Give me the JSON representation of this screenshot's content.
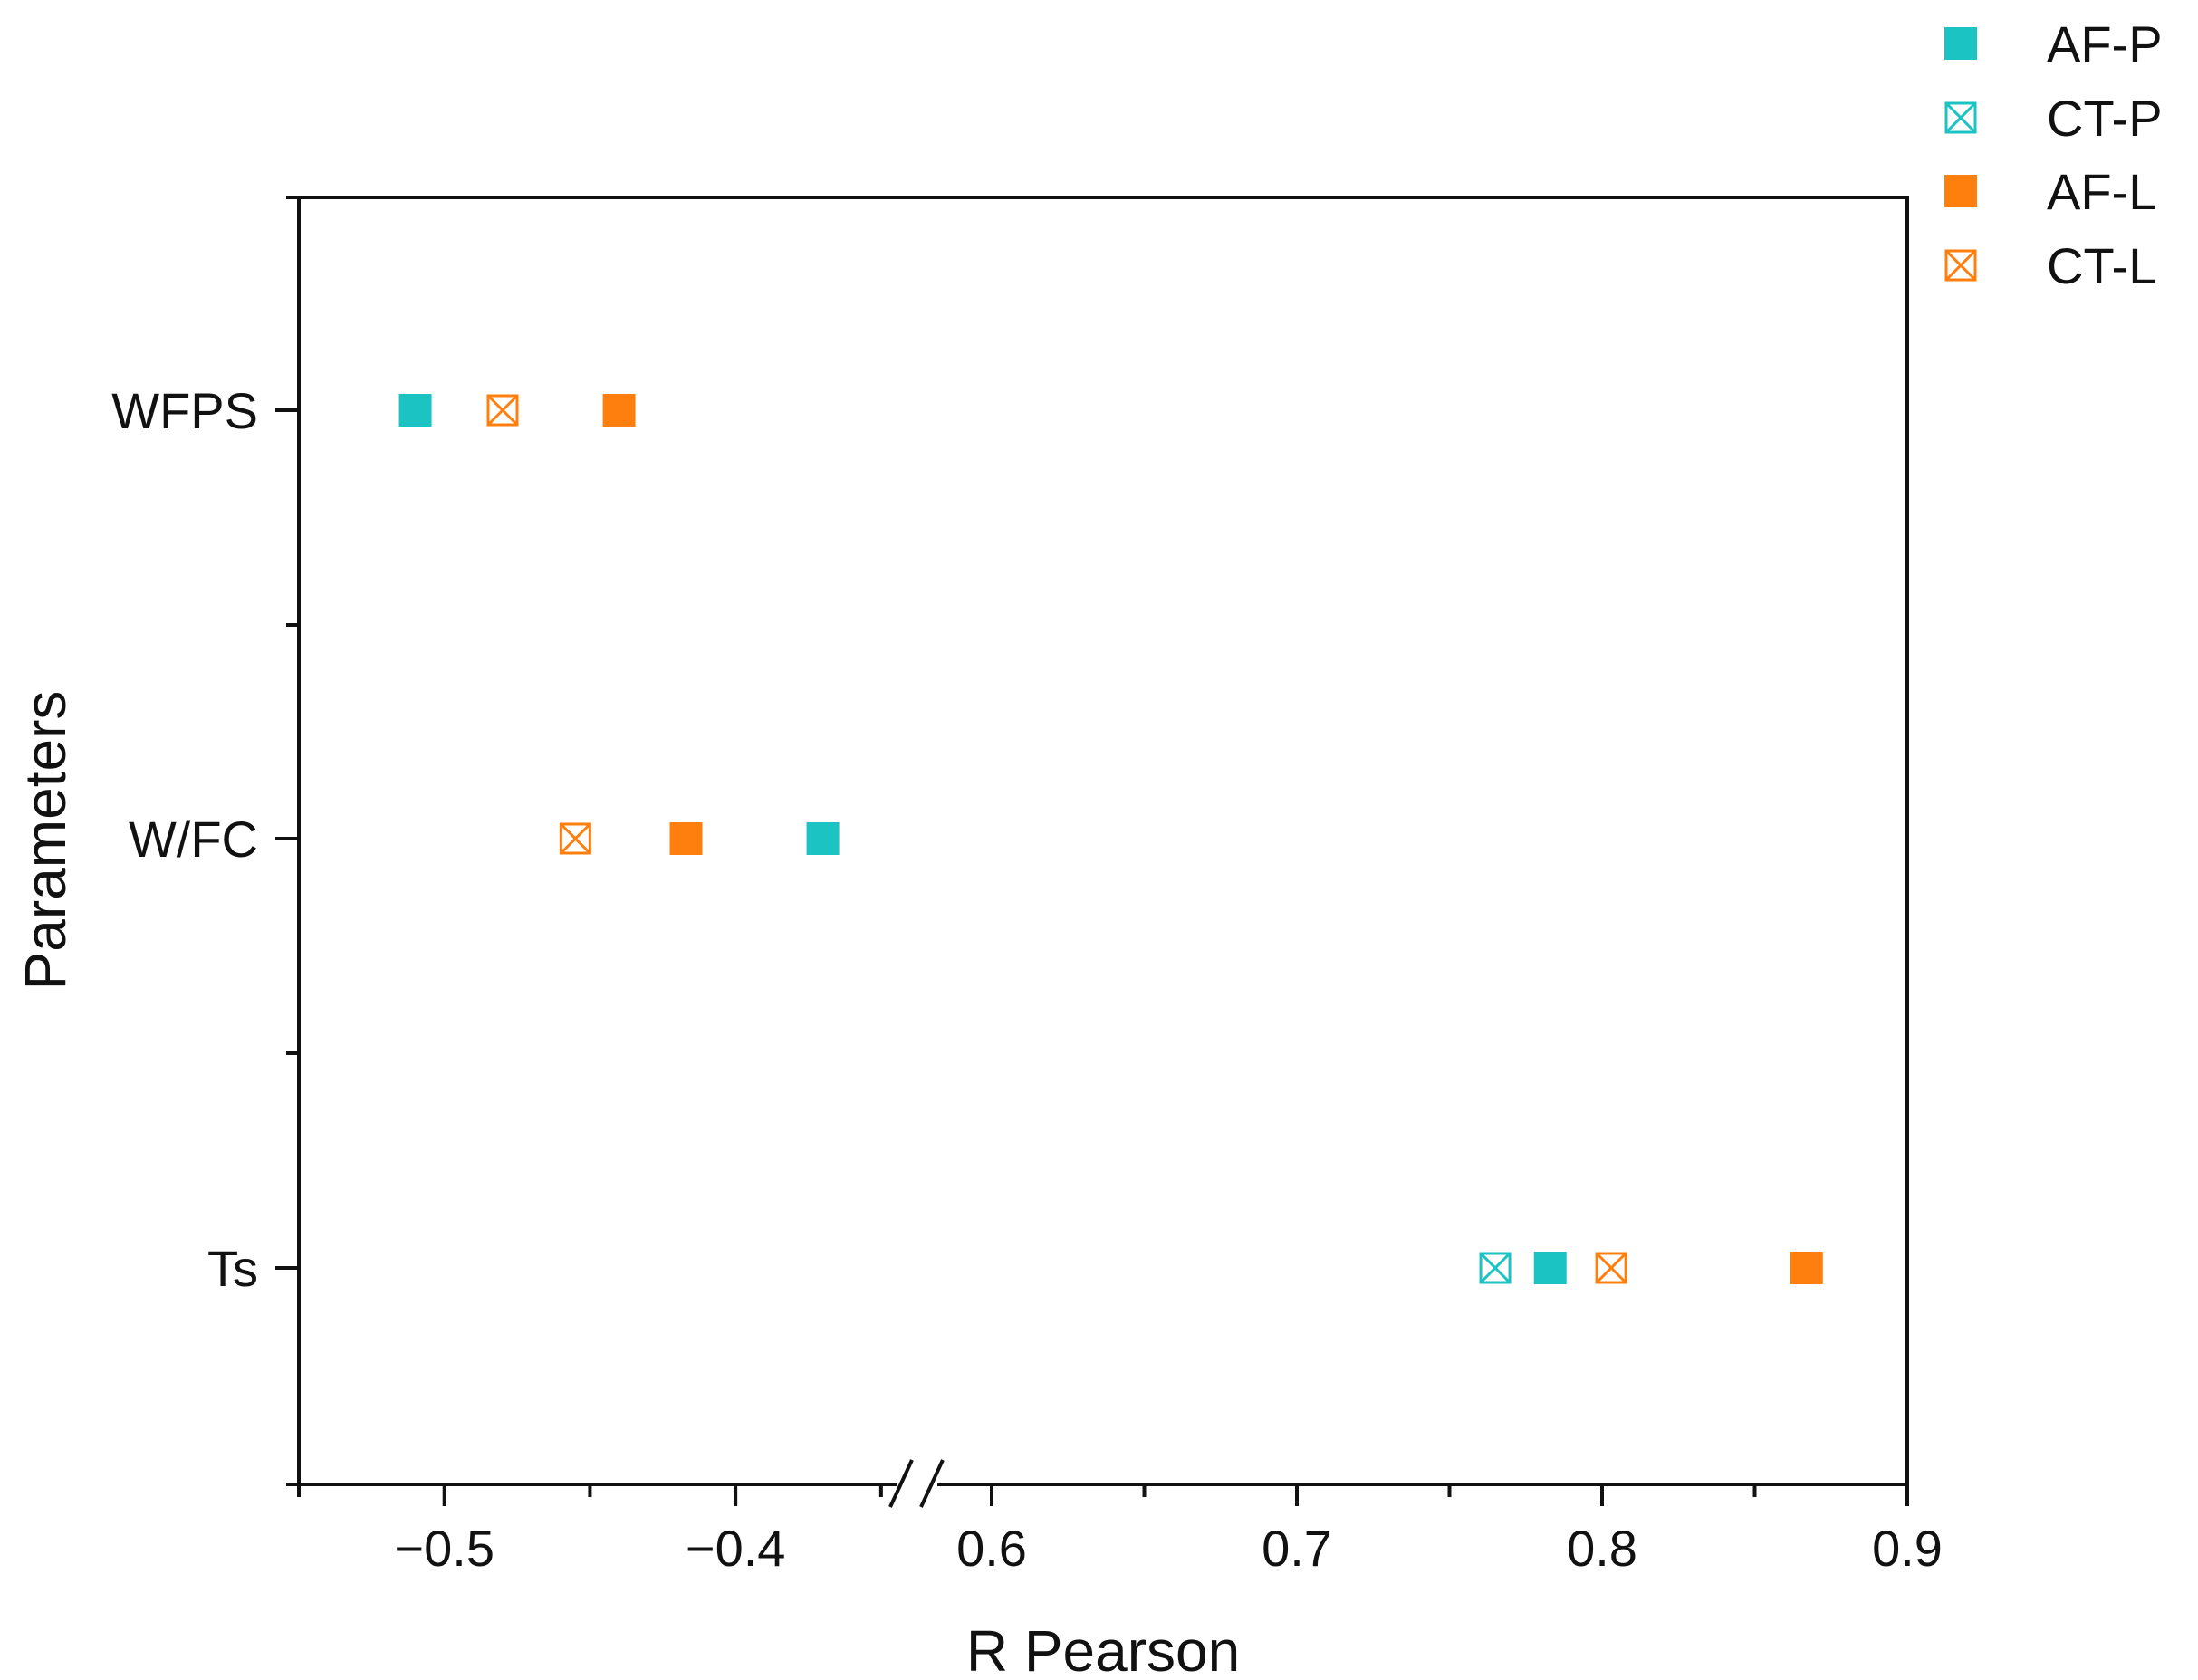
{
  "chart_data": {
    "type": "scatter",
    "xlabel": "R Pearson",
    "ylabel": "Parameters",
    "x_axis_break": true,
    "x_segments": [
      {
        "range": [
          -0.55,
          -0.34
        ],
        "ticks": [
          -0.5,
          -0.4
        ],
        "tick_labels": [
          "−0.5",
          "−0.4"
        ]
      },
      {
        "range": [
          0.6,
          0.9
        ],
        "ticks": [
          0.6,
          0.7,
          0.8,
          0.9
        ],
        "tick_labels": [
          "0.6",
          "0.7",
          "0.8",
          "0.9"
        ]
      }
    ],
    "categories": [
      "WFPS",
      "W/FC",
      "Ts"
    ],
    "legend_position": "top-right, outside plot",
    "series": [
      {
        "name": "AF-P",
        "marker": "filled-square",
        "color": "#1cc3c3",
        "values": [
          -0.51,
          -0.37,
          0.783
        ]
      },
      {
        "name": "CT-P",
        "marker": "crossed-square",
        "color": "#1cc3c3",
        "values": [
          null,
          null,
          0.765
        ]
      },
      {
        "name": "AF-L",
        "marker": "filled-square",
        "color": "#ff7f0e",
        "values": [
          -0.44,
          -0.417,
          0.867
        ]
      },
      {
        "name": "CT-L",
        "marker": "crossed-square",
        "color": "#ff7f0e",
        "values": [
          -0.48,
          -0.455,
          0.803
        ]
      }
    ]
  }
}
